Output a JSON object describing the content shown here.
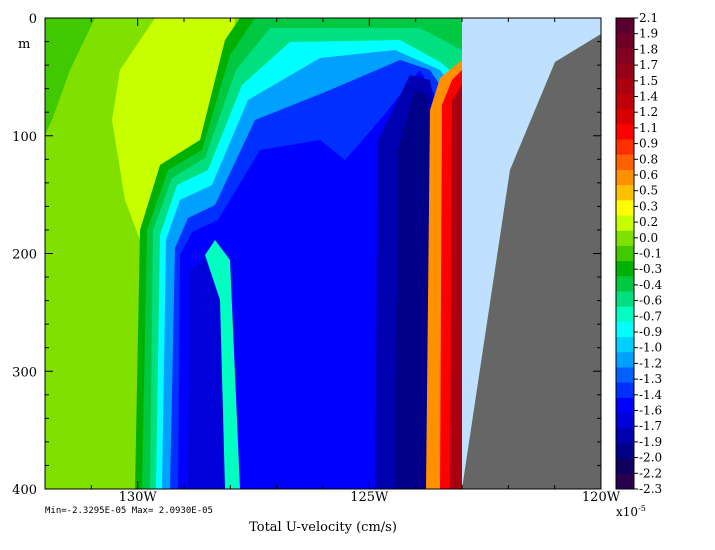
{
  "chart_data": {
    "type": "heatmap",
    "title": "Total U-velocity (cm/s)",
    "xlabel": "",
    "ylabel": "m",
    "x_ticks": [
      "130W",
      "125W",
      "120W"
    ],
    "x_tick_values": [
      -130,
      -125,
      -120
    ],
    "xlim": [
      -132,
      -120
    ],
    "y_ticks": [
      "0",
      "100",
      "200",
      "300",
      "400"
    ],
    "y_tick_values": [
      0,
      100,
      200,
      300,
      400
    ],
    "ylim": [
      400,
      0
    ],
    "stats": "Min=-2.3295E-05   Max= 2.0930E-05",
    "colorbar_exponent": "x10",
    "colorbar_exponent_power": "-5",
    "colorbar_labels": [
      "2.1",
      "1.9",
      "1.8",
      "1.7",
      "1.5",
      "1.4",
      "1.2",
      "1.1",
      "0.9",
      "0.8",
      "0.6",
      "0.5",
      "0.3",
      "0.2",
      "0.0",
      "-0.1",
      "-0.3",
      "-0.4",
      "-0.6",
      "-0.7",
      "-0.9",
      "-1.0",
      "-1.2",
      "-1.3",
      "-1.4",
      "-1.6",
      "-1.7",
      "-1.9",
      "-2.0",
      "-2.2",
      "-2.3"
    ],
    "colorbar_colors": [
      "#5a0030",
      "#6e0028",
      "#820020",
      "#960018",
      "#aa0010",
      "#c00008",
      "#d80000",
      "#ff0000",
      "#ff3000",
      "#ff6000",
      "#ff9000",
      "#ffc000",
      "#ffff00",
      "#c8ff00",
      "#80e000",
      "#40c800",
      "#00b000",
      "#00c840",
      "#00e080",
      "#00ffc0",
      "#00ffff",
      "#00d0ff",
      "#00a0ff",
      "#0060ff",
      "#0030ff",
      "#0000ff",
      "#0000d8",
      "#0000b0",
      "#000088",
      "#100060",
      "#280050"
    ],
    "land_color": "#666666",
    "missing_color": "#bfe0ff",
    "grid": false
  }
}
